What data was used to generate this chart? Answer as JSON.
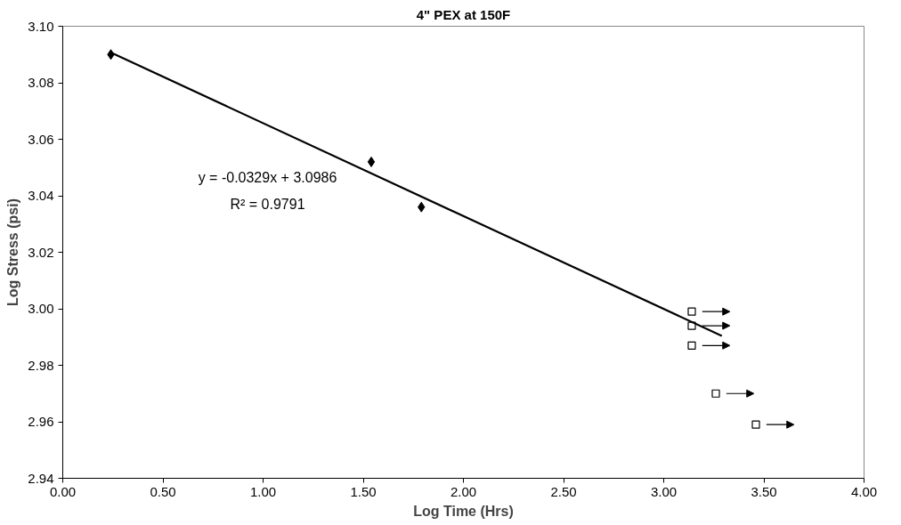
{
  "chart_data": {
    "type": "scatter",
    "title": "4\" PEX at 150F",
    "xlabel": "Log Time (Hrs)",
    "ylabel": "Log Stress (psi)",
    "xlim": [
      0,
      4
    ],
    "xticks": [
      {
        "value": 0,
        "label": "0.00"
      },
      {
        "value": 0.5,
        "label": "0.50"
      },
      {
        "value": 1,
        "label": "1.00"
      },
      {
        "value": 1.5,
        "label": "1.50"
      },
      {
        "value": 2,
        "label": "2.00"
      },
      {
        "value": 2.5,
        "label": "2.50"
      },
      {
        "value": 3,
        "label": "3.00"
      },
      {
        "value": 3.5,
        "label": "3.50"
      },
      {
        "value": 4,
        "label": "4.00"
      }
    ],
    "ylim": [
      2.94,
      3.1
    ],
    "yticks": [
      {
        "value": 2.94,
        "label": "2.94"
      },
      {
        "value": 2.96,
        "label": "2.96"
      },
      {
        "value": 2.98,
        "label": "2.98"
      },
      {
        "value": 3.0,
        "label": "3.00"
      },
      {
        "value": 3.02,
        "label": "3.02"
      },
      {
        "value": 3.04,
        "label": "3.04"
      },
      {
        "value": 3.06,
        "label": "3.06"
      },
      {
        "value": 3.08,
        "label": "3.08"
      },
      {
        "value": 3.1,
        "label": "3.10"
      }
    ],
    "grid": false,
    "series": [
      {
        "marker": "diamond",
        "color": "#000000",
        "x": [
          0.24,
          1.54,
          1.79
        ],
        "values": [
          3.09,
          3.052,
          3.036
        ]
      },
      {
        "marker": "square",
        "color": "#000000",
        "x": [
          3.14,
          3.14,
          3.14,
          3.26,
          3.46
        ],
        "values": [
          2.999,
          2.994,
          2.987,
          2.97,
          2.959
        ]
      },
      {
        "type": "line",
        "color": "#000000",
        "x": [
          0.24,
          3.29
        ],
        "values": [
          3.0907,
          2.9904
        ]
      }
    ],
    "annotations": [
      "y = -0.0329x + 3.0986",
      "R² = 0.9791"
    ]
  }
}
